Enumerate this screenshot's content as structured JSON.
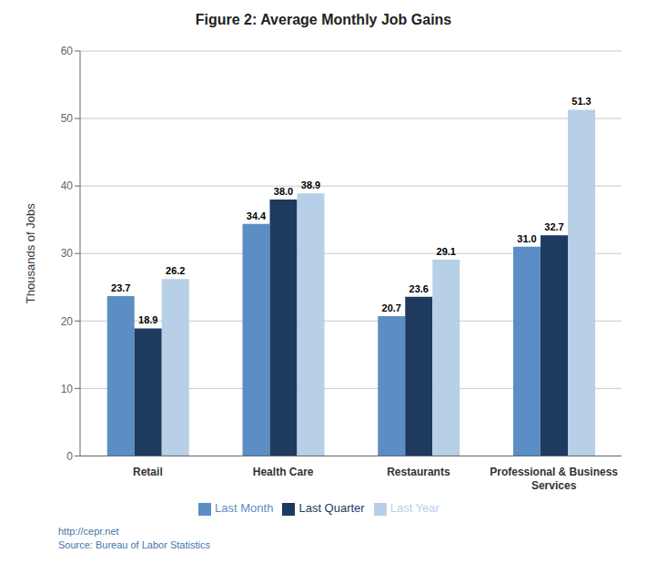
{
  "chart_data": {
    "type": "bar",
    "title": "Figure 2:  Average Monthly Job Gains",
    "categories": [
      "Retail",
      "Health Care",
      "Restaurants",
      "Professional & Business\nServices"
    ],
    "series": [
      {
        "name": "Last Month",
        "color": "#5b8ec4",
        "values": [
          23.7,
          34.4,
          20.7,
          31.0
        ],
        "value_labels": [
          "23.7",
          "34.4",
          "20.7",
          "31.0"
        ]
      },
      {
        "name": "Last Quarter",
        "color": "#1e3a5f",
        "values": [
          18.9,
          38.0,
          23.6,
          32.7
        ],
        "value_labels": [
          "18.9",
          "38.0",
          "23.6",
          "32.7"
        ]
      },
      {
        "name": "Last Year",
        "color": "#b8cfe8",
        "values": [
          26.2,
          38.9,
          29.1,
          51.3
        ],
        "value_labels": [
          "26.2",
          "38.9",
          "29.1",
          "51.3"
        ]
      }
    ],
    "ylabel": "Thousands of Jobs",
    "ylim": [
      0,
      60
    ],
    "yticks": [
      0,
      10,
      20,
      30,
      40,
      50,
      60
    ],
    "grid": true,
    "legend": "bottom",
    "data_labels": true,
    "annotations": [
      {
        "text": "http://cepr.net",
        "color": "#4477aa"
      },
      {
        "text": "Source: Bureau of Labor Statistics",
        "color": "#4477aa"
      }
    ]
  }
}
